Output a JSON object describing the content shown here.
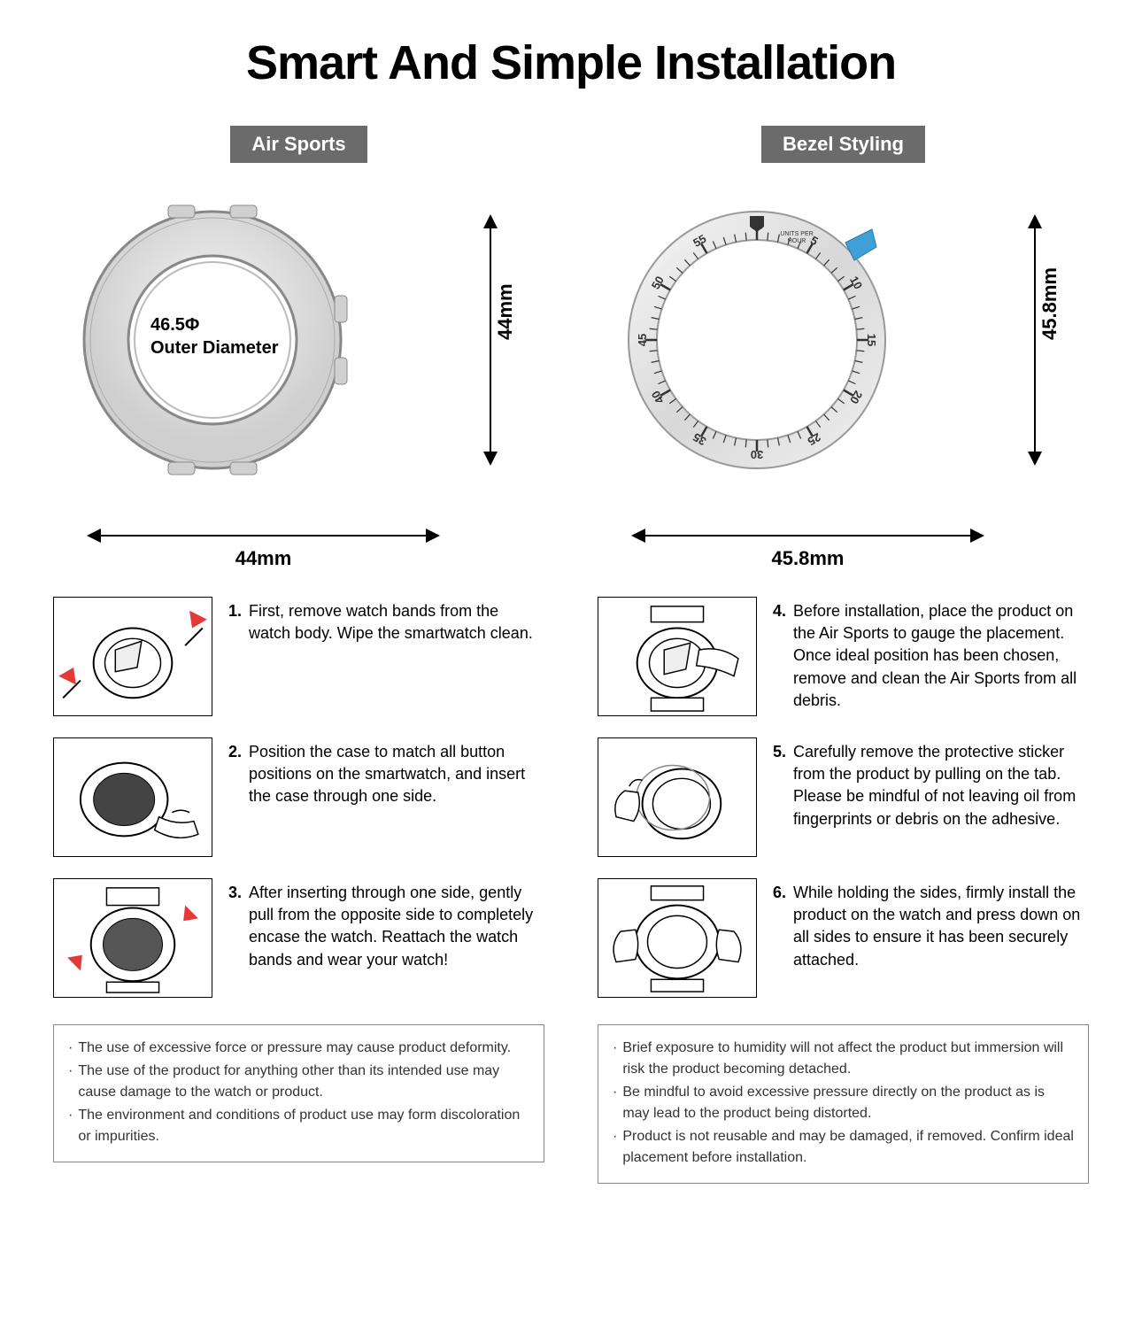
{
  "title": "Smart And Simple Installation",
  "colors": {
    "label_bg": "#6b6b6b",
    "label_text": "#ffffff",
    "text": "#000000",
    "border": "#000000",
    "notes_border": "#888888",
    "notes_text": "#333333",
    "accent_blue": "#3fa0d8",
    "arrow_red": "#e53935"
  },
  "left": {
    "label": "Air Sports",
    "diagram": {
      "inner_text_line1": "46.5Φ",
      "inner_text_line2": "Outer Diameter",
      "height_label": "44mm",
      "width_label": "44mm"
    },
    "steps": [
      {
        "num": "1.",
        "text": "First, remove watch bands from the watch body. Wipe the smartwatch clean."
      },
      {
        "num": "2.",
        "text": "Position the case to match all button positions on the smartwatch, and insert the case through one side."
      },
      {
        "num": "3.",
        "text": "After inserting through one side, gently pull from the opposite side to completely encase the watch. Reattach the watch bands and wear your watch!"
      }
    ],
    "notes": [
      "The use of excessive force or pressure may cause product deformity.",
      "The use of the product for anything other than its intended use may cause damage to the watch or product.",
      "The environment and conditions of product use may form discoloration or impurities."
    ]
  },
  "right": {
    "label": "Bezel Styling",
    "diagram": {
      "height_label": "45.8mm",
      "width_label": "45.8mm",
      "bezel_numbers": [
        "55",
        "60",
        "5",
        "10",
        "15",
        "20",
        "25",
        "30",
        "35",
        "40",
        "45",
        "50"
      ],
      "units_text": "UNITS PER HOUR"
    },
    "steps": [
      {
        "num": "4.",
        "text": "Before installation, place the product on the Air Sports to gauge the placement. Once ideal position has been chosen, remove and clean the Air Sports from all debris."
      },
      {
        "num": "5.",
        "text": "Carefully remove the protective sticker from the product by pulling on the tab. Please be mindful of not leaving oil from fingerprints or debris on the adhesive."
      },
      {
        "num": "6.",
        "text": "While holding the sides, firmly install the product on the watch and press down on all sides to ensure it has been securely attached."
      }
    ],
    "notes": [
      "Brief exposure to humidity will not affect the product but immersion will risk the product becoming detached.",
      "Be mindful to avoid excessive pressure directly on the product as is may lead to the product being distorted.",
      "Product is not reusable and may be damaged, if removed. Confirm ideal placement before installation."
    ]
  }
}
